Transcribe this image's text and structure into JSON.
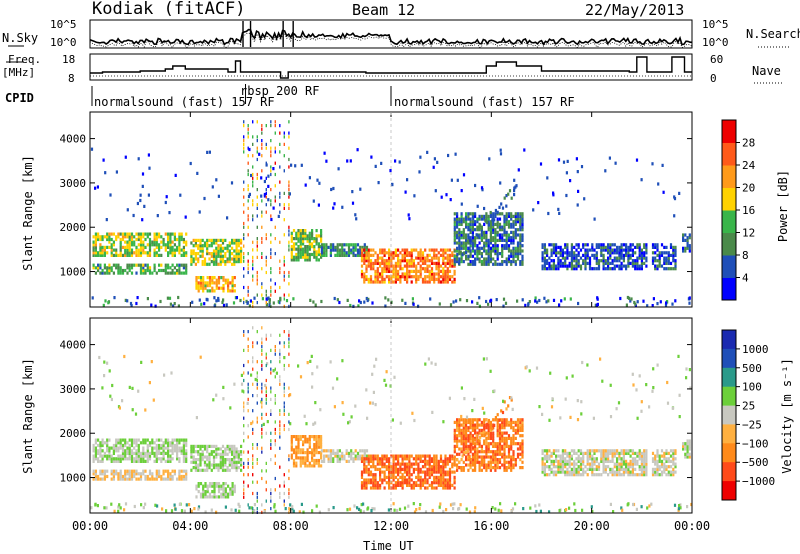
{
  "header": {
    "station": "Kodiak (fitACF)",
    "beam": "Beam 12",
    "date": "22/May/2013"
  },
  "noise_panel": {
    "left_label": "N.Sky",
    "right_label": "N.Search",
    "left_ticks": [
      "10^5",
      "10^0"
    ],
    "right_ticks": [
      "10^5",
      "10^0"
    ]
  },
  "freq_panel": {
    "left_label_1": "Freq.",
    "left_label_2": "[MHz]",
    "left_ticks": [
      "18",
      "8"
    ],
    "right_label": "Nave",
    "right_ticks": [
      "60",
      "0"
    ]
  },
  "cpid_panel": {
    "label": "CPID",
    "segments": [
      {
        "text": "normalsound (fast) 157 RF",
        "start_hour": 0
      },
      {
        "text": "rbsp 200 RF",
        "start_hour": 6.2
      },
      {
        "text": "normalsound (fast) 157 RF",
        "start_hour": 12
      }
    ]
  },
  "colors": {
    "power": [
      "#0000ff",
      "#1f4fb8",
      "#4a8a4a",
      "#39b54a",
      "#ffd200",
      "#ff9a1a",
      "#ff5a1a",
      "#ee0000"
    ],
    "velocity": [
      "#ee0000",
      "#ff4a1a",
      "#ff8a1a",
      "#ffb040",
      "#c8c8c0",
      "#6ccf3a",
      "#2a9a8a",
      "#1f4fb8",
      "#1a2ab0"
    ]
  },
  "chart_data": [
    {
      "type": "heatmap",
      "name": "power",
      "ylabel": "Slant Range [km]",
      "yticks": [
        "1000",
        "2000",
        "3000",
        "4000"
      ],
      "ylim": [
        200,
        4600
      ],
      "xlim_hours": [
        0,
        24
      ],
      "colorbar_label": "Power [dB]",
      "colorbar_ticks": [
        "4",
        "8",
        "12",
        "16",
        "20",
        "24",
        "28"
      ],
      "colorbar_range": [
        0,
        32
      ]
    },
    {
      "type": "heatmap",
      "name": "velocity",
      "ylabel": "Slant Range [km]",
      "yticks": [
        "1000",
        "2000",
        "3000",
        "4000"
      ],
      "ylim": [
        200,
        4600
      ],
      "xlim_hours": [
        0,
        24
      ],
      "colorbar_label": "Velocity [m s⁻¹]",
      "colorbar_ticks": [
        "1000",
        "500",
        "100",
        "25",
        "−25",
        "−100",
        "−500",
        "−1000"
      ]
    }
  ],
  "xaxis": {
    "ticks": [
      "00:00",
      "04:00",
      "08:00",
      "12:00",
      "16:00",
      "20:00",
      "00:00"
    ],
    "label": "Time UT"
  }
}
